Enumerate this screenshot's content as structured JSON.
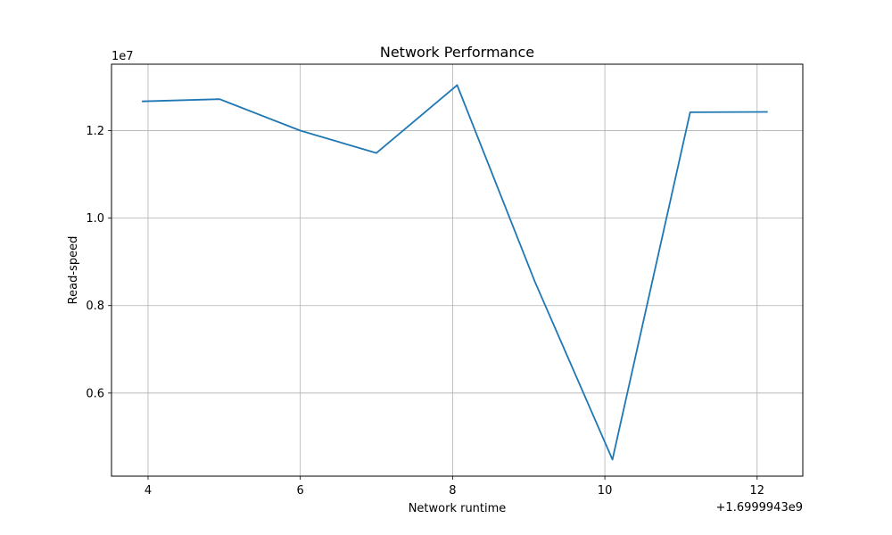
{
  "chart_data": {
    "type": "line",
    "title": "Network Performance",
    "xlabel": "Network runtime",
    "ylabel": "Read-speed",
    "x_offset_label": "+1.6999943e9",
    "y_scale_label": "1e7",
    "xlim": [
      3.52,
      12.6
    ],
    "ylim": [
      0.41,
      1.352
    ],
    "x_ticks": [
      4,
      6,
      8,
      10,
      12
    ],
    "x_tick_labels": [
      "4",
      "6",
      "8",
      "10",
      "12"
    ],
    "y_ticks": [
      0.6,
      0.8,
      1.0,
      1.2
    ],
    "y_tick_labels": [
      "0.6",
      "0.8",
      "1.0",
      "1.2"
    ],
    "grid": true,
    "series": [
      {
        "color": "#1f77b4",
        "x": [
          3.92,
          4.94,
          6.0,
          7.0,
          8.06,
          9.08,
          10.1,
          11.12,
          12.14
        ],
        "y": [
          1.267,
          1.272,
          1.2,
          1.149,
          1.304,
          0.855,
          0.448,
          1.242,
          1.243
        ]
      }
    ]
  }
}
